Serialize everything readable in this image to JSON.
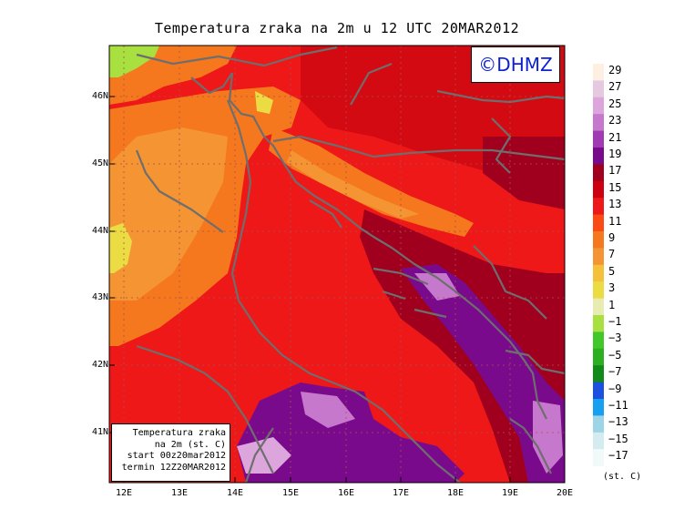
{
  "title": "Temperatura zraka na 2m u 12 UTC 20MAR2012",
  "copyright": "©DHMZ",
  "info_box": {
    "line1": "Temperatura zraka",
    "line2": "na 2m (st. C)",
    "line3": "start 00z20mar2012",
    "line4": "termin 12Z20MAR2012"
  },
  "latitude_labels": [
    "46N",
    "45N",
    "44N",
    "43N",
    "42N",
    "41N"
  ],
  "longitude_labels": [
    "12E",
    "13E",
    "14E",
    "15E",
    "16E",
    "17E",
    "18E",
    "19E",
    "20E"
  ],
  "colorbar": {
    "labels": [
      "29",
      "27",
      "25",
      "23",
      "21",
      "19",
      "17",
      "15",
      "13",
      "11",
      "9",
      "7",
      "5",
      "3",
      "1",
      "−1",
      "−3",
      "−5",
      "−7",
      "−9",
      "−11",
      "−13",
      "−15",
      "−17"
    ],
    "colors": [
      "#fdf0e0",
      "#e6c8e0",
      "#dca6dc",
      "#c678cc",
      "#a23ab4",
      "#7a0a8c",
      "#a0001e",
      "#cc0010",
      "#ee1818",
      "#fb4a14",
      "#f6781e",
      "#f49432",
      "#f4c23a",
      "#ecdc44",
      "#e8ecb0",
      "#a8e040",
      "#40c828",
      "#2ab020",
      "#108a18",
      "#1c50e0",
      "#18a0f0",
      "#9cd4e8",
      "#d4ecf0",
      "#f0fafa"
    ],
    "units": "(st. C)"
  }
}
